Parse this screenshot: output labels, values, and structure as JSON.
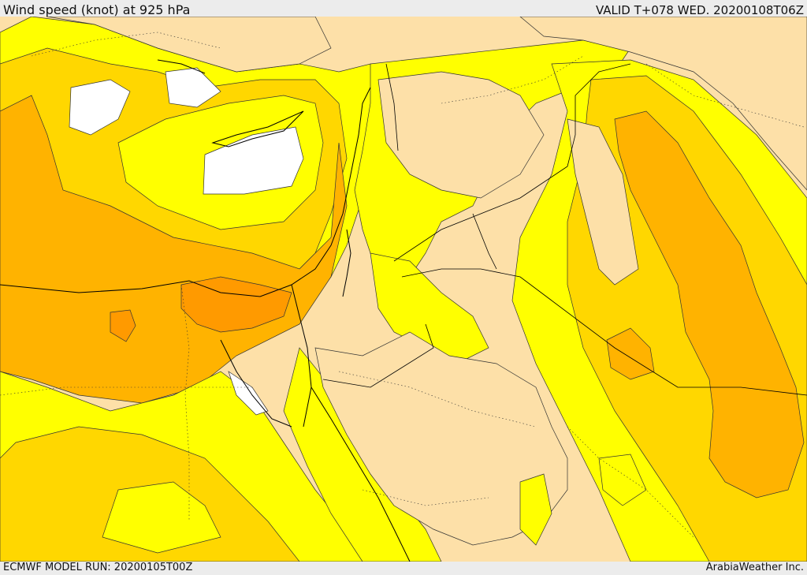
{
  "header": {
    "title": "Wind speed (knot) at 925 hPa",
    "valid": "VALID T+078 WED. 20200108T06Z"
  },
  "footer": {
    "model_run": "ECMWF MODEL RUN: 20200105T00Z",
    "credit": "ArabiaWeather Inc."
  },
  "colors": {
    "calm": "#ffffff",
    "light": "#fde0a8",
    "moderate": "#ffff00",
    "fresh": "#ffd700",
    "strong": "#ffb300",
    "very_strong": "#ff9a00",
    "coastline": "#000000"
  }
}
